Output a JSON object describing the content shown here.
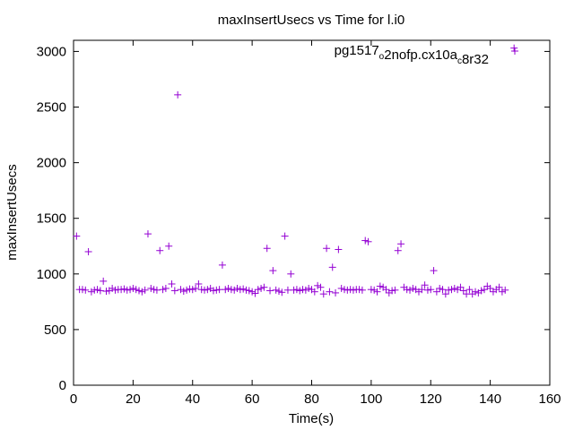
{
  "chart_data": {
    "type": "scatter",
    "title": "maxInsertUsecs vs Time for l.i0",
    "xlabel": "Time(s)",
    "ylabel": "maxInsertUsecs",
    "xlim": [
      0,
      160
    ],
    "ylim": [
      0,
      3100
    ],
    "x_ticks": [
      0,
      20,
      40,
      60,
      80,
      100,
      120,
      140,
      160
    ],
    "y_ticks": [
      0,
      500,
      1000,
      1500,
      2000,
      2500,
      3000
    ],
    "grid": false,
    "legend_position": "top-right",
    "marker": "+",
    "color": "#9400d3",
    "series": [
      {
        "name": "pg1517_o2nofp.cx10a_c8r32",
        "name_parts": [
          {
            "text": "pg1517",
            "sub": false
          },
          {
            "text": "o",
            "sub": true
          },
          {
            "text": "2nofp.cx10a",
            "sub": false
          },
          {
            "text": "c",
            "sub": true
          },
          {
            "text": "8r32",
            "sub": false
          }
        ],
        "points": [
          [
            1,
            1340
          ],
          [
            2,
            860
          ],
          [
            3,
            860
          ],
          [
            4,
            855
          ],
          [
            5,
            1200
          ],
          [
            6,
            840
          ],
          [
            7,
            855
          ],
          [
            8,
            860
          ],
          [
            9,
            850
          ],
          [
            10,
            935
          ],
          [
            11,
            845
          ],
          [
            12,
            850
          ],
          [
            13,
            870
          ],
          [
            14,
            855
          ],
          [
            15,
            860
          ],
          [
            16,
            860
          ],
          [
            17,
            865
          ],
          [
            18,
            855
          ],
          [
            19,
            860
          ],
          [
            20,
            870
          ],
          [
            21,
            860
          ],
          [
            22,
            850
          ],
          [
            23,
            840
          ],
          [
            24,
            855
          ],
          [
            25,
            1360
          ],
          [
            26,
            870
          ],
          [
            27,
            860
          ],
          [
            28,
            855
          ],
          [
            29,
            1210
          ],
          [
            30,
            860
          ],
          [
            31,
            870
          ],
          [
            32,
            1250
          ],
          [
            33,
            910
          ],
          [
            34,
            850
          ],
          [
            35,
            2610
          ],
          [
            36,
            860
          ],
          [
            37,
            845
          ],
          [
            38,
            855
          ],
          [
            39,
            865
          ],
          [
            40,
            860
          ],
          [
            41,
            870
          ],
          [
            42,
            910
          ],
          [
            43,
            860
          ],
          [
            44,
            855
          ],
          [
            45,
            860
          ],
          [
            46,
            870
          ],
          [
            47,
            850
          ],
          [
            48,
            855
          ],
          [
            49,
            860
          ],
          [
            50,
            1080
          ],
          [
            51,
            860
          ],
          [
            52,
            870
          ],
          [
            53,
            860
          ],
          [
            54,
            855
          ],
          [
            55,
            870
          ],
          [
            56,
            860
          ],
          [
            57,
            865
          ],
          [
            58,
            855
          ],
          [
            59,
            850
          ],
          [
            60,
            840
          ],
          [
            61,
            825
          ],
          [
            62,
            860
          ],
          [
            63,
            870
          ],
          [
            64,
            880
          ],
          [
            65,
            1230
          ],
          [
            66,
            850
          ],
          [
            67,
            1030
          ],
          [
            68,
            855
          ],
          [
            69,
            845
          ],
          [
            70,
            835
          ],
          [
            71,
            1340
          ],
          [
            72,
            855
          ],
          [
            73,
            1000
          ],
          [
            74,
            855
          ],
          [
            75,
            860
          ],
          [
            76,
            850
          ],
          [
            77,
            860
          ],
          [
            78,
            855
          ],
          [
            79,
            870
          ],
          [
            80,
            860
          ],
          [
            81,
            840
          ],
          [
            82,
            895
          ],
          [
            83,
            880
          ],
          [
            84,
            820
          ],
          [
            85,
            1230
          ],
          [
            86,
            840
          ],
          [
            87,
            1060
          ],
          [
            88,
            830
          ],
          [
            89,
            1220
          ],
          [
            90,
            870
          ],
          [
            91,
            860
          ],
          [
            92,
            855
          ],
          [
            93,
            860
          ],
          [
            94,
            855
          ],
          [
            95,
            860
          ],
          [
            96,
            860
          ],
          [
            97,
            855
          ],
          [
            98,
            1300
          ],
          [
            99,
            1290
          ],
          [
            100,
            860
          ],
          [
            101,
            855
          ],
          [
            102,
            840
          ],
          [
            103,
            890
          ],
          [
            104,
            880
          ],
          [
            105,
            860
          ],
          [
            106,
            830
          ],
          [
            107,
            850
          ],
          [
            108,
            855
          ],
          [
            109,
            1210
          ],
          [
            110,
            1270
          ],
          [
            111,
            880
          ],
          [
            112,
            860
          ],
          [
            113,
            855
          ],
          [
            114,
            870
          ],
          [
            115,
            860
          ],
          [
            116,
            840
          ],
          [
            117,
            860
          ],
          [
            118,
            900
          ],
          [
            119,
            855
          ],
          [
            120,
            860
          ],
          [
            121,
            1030
          ],
          [
            122,
            840
          ],
          [
            123,
            870
          ],
          [
            124,
            860
          ],
          [
            125,
            820
          ],
          [
            126,
            855
          ],
          [
            127,
            860
          ],
          [
            128,
            870
          ],
          [
            129,
            860
          ],
          [
            130,
            880
          ],
          [
            131,
            850
          ],
          [
            132,
            820
          ],
          [
            133,
            860
          ],
          [
            134,
            820
          ],
          [
            135,
            840
          ],
          [
            136,
            830
          ],
          [
            137,
            850
          ],
          [
            138,
            860
          ],
          [
            139,
            890
          ],
          [
            140,
            870
          ],
          [
            141,
            840
          ],
          [
            142,
            860
          ],
          [
            143,
            880
          ],
          [
            144,
            840
          ],
          [
            145,
            855
          ],
          [
            148,
            3030
          ]
        ]
      }
    ]
  }
}
